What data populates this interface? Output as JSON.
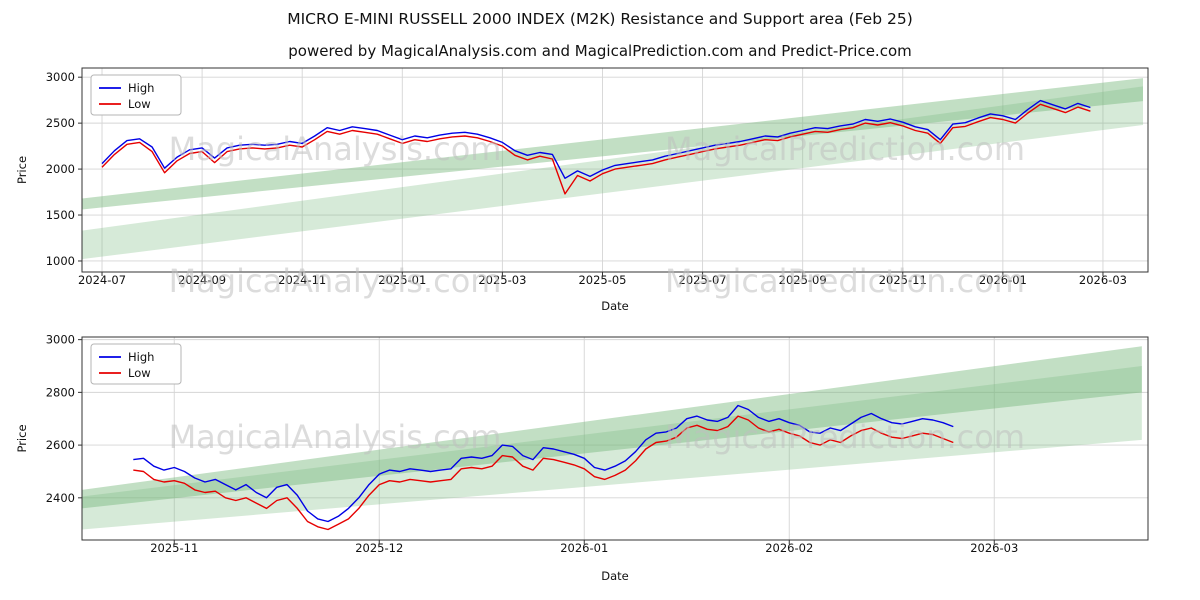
{
  "page": {
    "title": "MICRO E-MINI RUSSELL 2000 INDEX (M2K) Resistance and Support area (Feb 25)",
    "subtitle": "powered by MagicalAnalysis.com and MagicalPrediction.com and Predict-Price.com"
  },
  "watermarks": {
    "left": "MagicalAnalysis.com",
    "right": "MagicalPrediction.com"
  },
  "colors": {
    "high_line": "#0000e6",
    "low_line": "#e60000",
    "band": "#78b97d",
    "grid": "#d5d5d5"
  },
  "chart_data": [
    {
      "type": "line",
      "name": "full-history-2024-07-to-2026-03",
      "xlabel": "Date",
      "ylabel": "Price",
      "x_unit": "months since 2024-07",
      "xlim": [
        -0.4,
        20.9
      ],
      "ylim": [
        880,
        3100
      ],
      "x_tick_positions": [
        0,
        2,
        4,
        6,
        8,
        10,
        12,
        14,
        16,
        18,
        20
      ],
      "x_tick_labels": [
        "2024-07",
        "2024-09",
        "2024-11",
        "2025-01",
        "2025-03",
        "2025-05",
        "2025-07",
        "2025-09",
        "2025-11",
        "2026-01",
        "2026-03"
      ],
      "y_ticks": [
        1000,
        1500,
        2000,
        2500,
        3000
      ],
      "grid": true,
      "legend_position": "upper left",
      "band_color": "#78b97d",
      "bands": [
        {
          "x0": -0.4,
          "y0_low": 1560,
          "y0_high": 1680,
          "x1": 20.8,
          "y1_low": 2740,
          "y1_high": 2990,
          "opacity": 0.45
        },
        {
          "x0": -0.4,
          "y0_low": 1020,
          "y0_high": 1330,
          "x1": 20.8,
          "y1_low": 2480,
          "y1_high": 2900,
          "opacity": 0.3
        }
      ],
      "series": [
        {
          "name": "High",
          "color": "#0000e6",
          "x_start": 0,
          "x_step": 0.25,
          "values": [
            2060,
            2200,
            2310,
            2330,
            2240,
            2010,
            2130,
            2210,
            2230,
            2120,
            2230,
            2260,
            2270,
            2260,
            2270,
            2300,
            2280,
            2360,
            2450,
            2420,
            2460,
            2440,
            2420,
            2370,
            2320,
            2360,
            2340,
            2370,
            2390,
            2400,
            2380,
            2340,
            2290,
            2200,
            2150,
            2180,
            2160,
            1900,
            1980,
            1920,
            1990,
            2040,
            2060,
            2080,
            2100,
            2140,
            2170,
            2200,
            2230,
            2260,
            2280,
            2300,
            2330,
            2360,
            2350,
            2390,
            2420,
            2450,
            2440,
            2470,
            2490,
            2540,
            2520,
            2545,
            2510,
            2460,
            2430,
            2320,
            2490,
            2505,
            2555,
            2600,
            2580,
            2540,
            2650,
            2745,
            2700,
            2655,
            2715,
            2670
          ]
        },
        {
          "name": "Low",
          "color": "#e60000",
          "x_start": 0,
          "x_step": 0.25,
          "values": [
            2020,
            2160,
            2270,
            2290,
            2190,
            1960,
            2090,
            2170,
            2190,
            2070,
            2190,
            2220,
            2230,
            2220,
            2230,
            2260,
            2240,
            2320,
            2410,
            2380,
            2420,
            2400,
            2380,
            2330,
            2280,
            2320,
            2300,
            2330,
            2350,
            2360,
            2340,
            2300,
            2250,
            2150,
            2100,
            2140,
            2110,
            1730,
            1930,
            1870,
            1950,
            2000,
            2020,
            2040,
            2060,
            2100,
            2130,
            2160,
            2190,
            2220,
            2240,
            2260,
            2290,
            2320,
            2310,
            2350,
            2380,
            2410,
            2400,
            2430,
            2450,
            2500,
            2480,
            2505,
            2470,
            2420,
            2390,
            2280,
            2450,
            2465,
            2515,
            2560,
            2540,
            2500,
            2610,
            2705,
            2660,
            2615,
            2675,
            2630
          ]
        }
      ]
    },
    {
      "type": "line",
      "name": "zoom-2025-11-to-2026-03",
      "xlabel": "Date",
      "ylabel": "Price",
      "x_unit": "months since 2025-11",
      "xlim": [
        -0.45,
        4.75
      ],
      "ylim": [
        2240,
        3010
      ],
      "x_tick_positions": [
        0,
        1,
        2,
        3,
        4
      ],
      "x_tick_labels": [
        "2025-11",
        "2025-12",
        "2026-01",
        "2026-02",
        "2026-03"
      ],
      "y_ticks": [
        2400,
        2600,
        2800,
        3000
      ],
      "grid": true,
      "legend_position": "upper left",
      "band_color": "#78b97d",
      "bands": [
        {
          "x0": -0.45,
          "y0_low": 2360,
          "y0_high": 2430,
          "x1": 4.72,
          "y1_low": 2800,
          "y1_high": 2975,
          "opacity": 0.45
        },
        {
          "x0": -0.45,
          "y0_low": 2280,
          "y0_high": 2405,
          "x1": 4.72,
          "y1_low": 2620,
          "y1_high": 2900,
          "opacity": 0.3
        }
      ],
      "series": [
        {
          "name": "High",
          "color": "#0000e6",
          "x_start": -0.2,
          "x_step": 0.05,
          "values": [
            2545,
            2550,
            2520,
            2505,
            2515,
            2500,
            2475,
            2460,
            2470,
            2450,
            2430,
            2450,
            2420,
            2400,
            2440,
            2450,
            2410,
            2350,
            2320,
            2310,
            2330,
            2360,
            2400,
            2450,
            2490,
            2505,
            2500,
            2510,
            2505,
            2500,
            2505,
            2510,
            2550,
            2555,
            2550,
            2560,
            2600,
            2595,
            2560,
            2545,
            2590,
            2585,
            2575,
            2565,
            2550,
            2515,
            2505,
            2520,
            2540,
            2575,
            2620,
            2645,
            2650,
            2665,
            2700,
            2710,
            2695,
            2690,
            2705,
            2750,
            2735,
            2705,
            2690,
            2700,
            2685,
            2675,
            2650,
            2645,
            2665,
            2655,
            2680,
            2705,
            2720,
            2700,
            2685,
            2680,
            2690,
            2700,
            2695,
            2685,
            2670
          ]
        },
        {
          "name": "Low",
          "color": "#e60000",
          "x_start": -0.2,
          "x_step": 0.05,
          "values": [
            2505,
            2500,
            2470,
            2460,
            2465,
            2455,
            2430,
            2420,
            2425,
            2400,
            2390,
            2400,
            2380,
            2360,
            2390,
            2400,
            2360,
            2310,
            2290,
            2280,
            2300,
            2320,
            2360,
            2410,
            2450,
            2465,
            2460,
            2470,
            2465,
            2460,
            2465,
            2470,
            2510,
            2515,
            2510,
            2520,
            2560,
            2555,
            2520,
            2505,
            2550,
            2545,
            2535,
            2525,
            2510,
            2480,
            2470,
            2485,
            2505,
            2540,
            2585,
            2610,
            2615,
            2630,
            2665,
            2675,
            2660,
            2655,
            2670,
            2710,
            2695,
            2665,
            2650,
            2660,
            2645,
            2635,
            2610,
            2600,
            2620,
            2610,
            2635,
            2655,
            2665,
            2645,
            2630,
            2625,
            2635,
            2645,
            2640,
            2625,
            2610
          ]
        }
      ]
    }
  ]
}
